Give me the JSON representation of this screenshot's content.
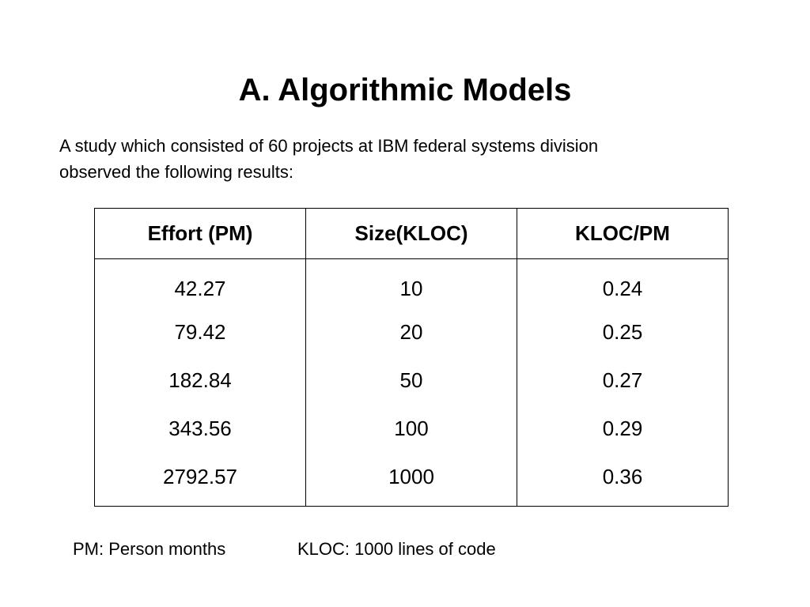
{
  "slide": {
    "title": "A. Algorithmic Models",
    "intro": [
      "A study which consisted of 60 projects at IBM federal systems division",
      "observed the following results:"
    ],
    "table": {
      "headers": [
        "Effort (PM)",
        "Size(KLOC)",
        "KLOC/PM"
      ],
      "rows": [
        [
          "42.27",
          "10",
          "0.24"
        ],
        [
          "79.42",
          "20",
          "0.25"
        ],
        [
          "182.84",
          "50",
          "0.27"
        ],
        [
          "343.56",
          "100",
          "0.29"
        ],
        [
          "2792.57",
          "1000",
          "0.36"
        ]
      ]
    },
    "footnotes": {
      "pm": "PM: Person months",
      "kloc": "KLOC: 1000 lines of code"
    }
  }
}
